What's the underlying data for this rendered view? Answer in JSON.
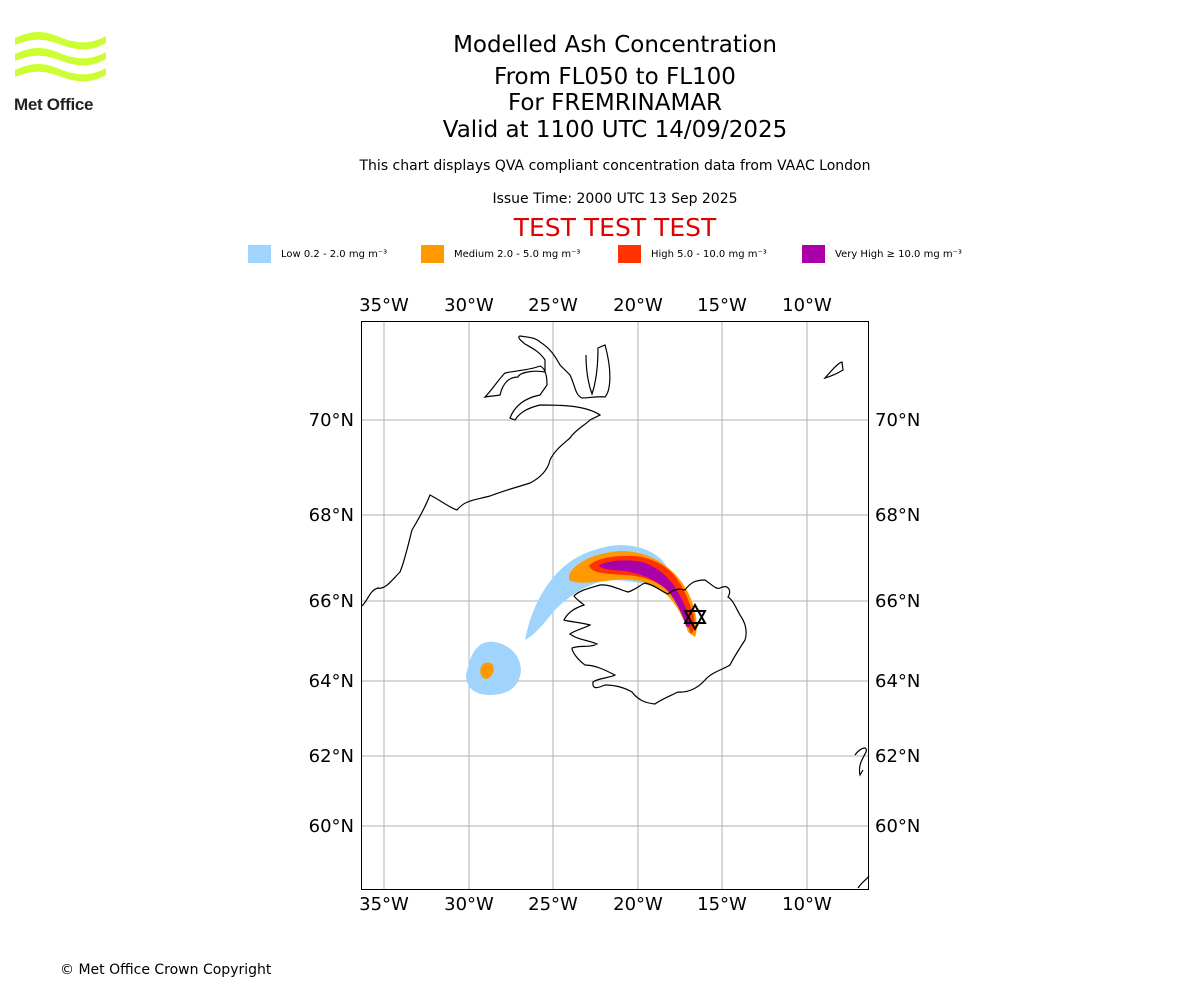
{
  "logo": {
    "text": "Met Office",
    "color": "#ccff33"
  },
  "header": {
    "title": "Modelled Ash Concentration",
    "levels": "From FL050 to FL100",
    "volcano": "For FREMRINAMAR",
    "valid": "Valid at 1100 UTC 14/09/2025",
    "qva_note": "This chart displays QVA compliant concentration data from VAAC London",
    "issue_time": "Issue Time: 2000 UTC 13 Sep 2025",
    "test_banner": "TEST TEST TEST"
  },
  "legend": [
    {
      "label": "Low 0.2 - 2.0 mg m⁻³",
      "color": "#a0d4fc"
    },
    {
      "label": "Medium 2.0 - 5.0 mg m⁻³",
      "color": "#ff9900"
    },
    {
      "label": "High 5.0 - 10.0 mg m⁻³",
      "color": "#ff3300"
    },
    {
      "label": "Very High ≥ 10.0 mg m⁻³",
      "color": "#aa00aa"
    }
  ],
  "map": {
    "lon_labels": [
      "35°W",
      "30°W",
      "25°W",
      "20°W",
      "15°W",
      "10°W"
    ],
    "lat_labels": [
      "70°N",
      "68°N",
      "66°N",
      "64°N",
      "62°N",
      "60°N"
    ],
    "volcano_marker": "star-of-david-icon"
  },
  "footer": {
    "copyright": "© Met Office Crown Copyright"
  }
}
